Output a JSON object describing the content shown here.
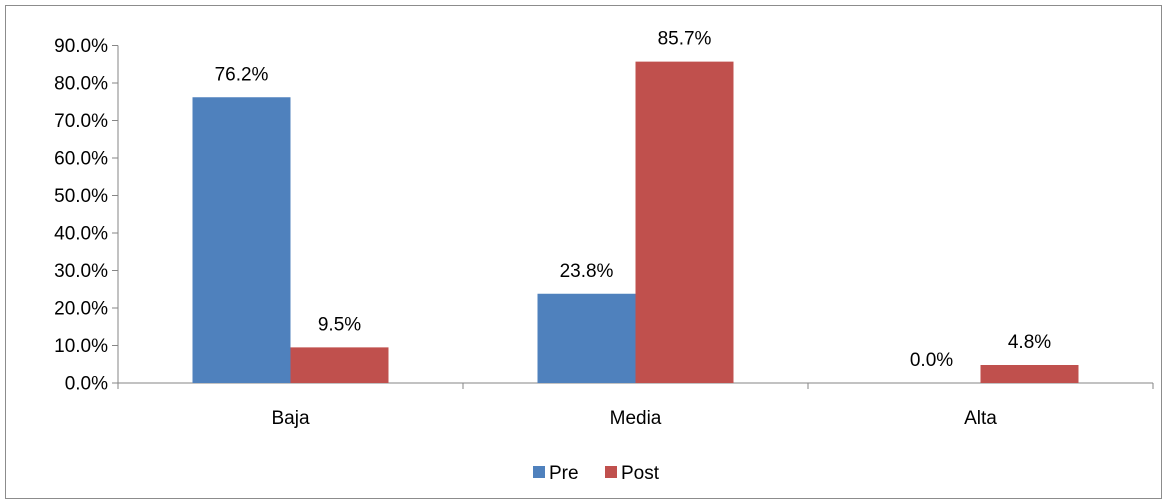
{
  "chart_data": {
    "type": "bar",
    "categories": [
      "Baja",
      "Media",
      "Alta"
    ],
    "series": [
      {
        "name": "Pre",
        "values": [
          76.2,
          23.8,
          0.0
        ],
        "labels": [
          "76.2%",
          "23.8%",
          "0.0%"
        ],
        "color": "#4f81bd"
      },
      {
        "name": "Post",
        "values": [
          9.5,
          85.7,
          4.8
        ],
        "labels": [
          "9.5%",
          "85.7%",
          "4.8%"
        ],
        "color": "#c0504d"
      }
    ],
    "yticks": [
      "0.0%",
      "10.0%",
      "20.0%",
      "30.0%",
      "40.0%",
      "50.0%",
      "60.0%",
      "70.0%",
      "80.0%",
      "90.0%"
    ],
    "ylim": [
      0,
      90
    ],
    "title": "",
    "xlabel": "",
    "ylabel": "",
    "legend": "bottom",
    "grid": false
  }
}
